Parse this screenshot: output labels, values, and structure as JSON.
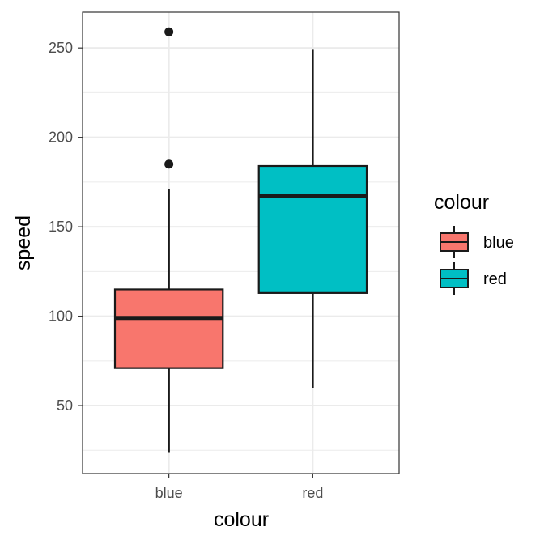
{
  "chart_data": {
    "type": "box",
    "xlabel": "colour",
    "ylabel": "speed",
    "categories": [
      "blue",
      "red"
    ],
    "yticks": [
      50,
      100,
      150,
      200,
      250
    ],
    "ylim": [
      12,
      270
    ],
    "grid": true,
    "legend": {
      "title": "colour",
      "position": "right",
      "entries": [
        "blue",
        "red"
      ]
    },
    "colors": {
      "blue": "#F8766D",
      "red": "#00BFC4",
      "outline": "#1a1a1a",
      "grid": "#ebebeb",
      "panel_border": "#333333"
    },
    "boxes": [
      {
        "category": "blue",
        "min": 24,
        "q1": 71,
        "median": 99,
        "q3": 115,
        "max": 171,
        "outliers": [
          185,
          259
        ]
      },
      {
        "category": "red",
        "min": 60,
        "q1": 113,
        "median": 167,
        "q3": 184,
        "max": 249,
        "outliers": []
      }
    ]
  }
}
